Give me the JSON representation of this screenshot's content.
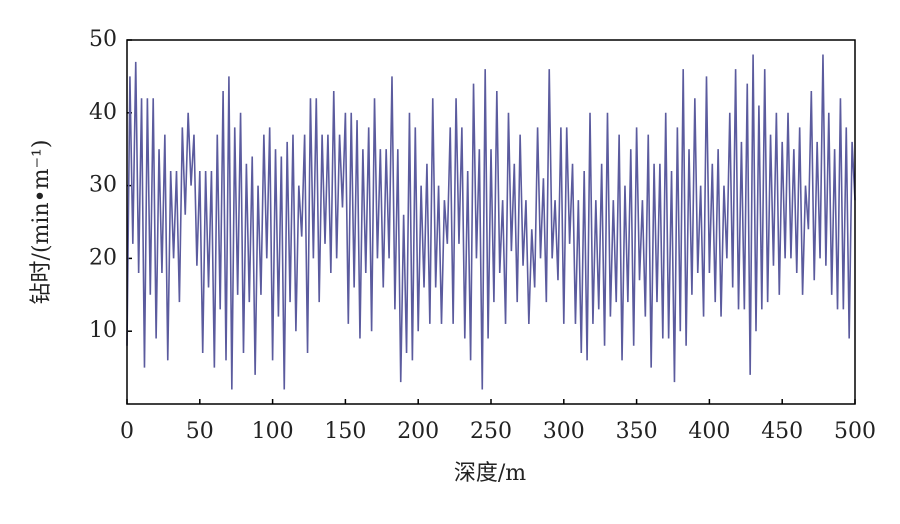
{
  "chart_data": {
    "type": "line",
    "xlabel": "深度/m",
    "ylabel": "钻时/(min•m⁻¹)",
    "xlim": [
      0,
      500
    ],
    "xticks": [
      0,
      50,
      100,
      150,
      200,
      250,
      300,
      350,
      400,
      450,
      500
    ],
    "ylim": [
      0,
      50
    ],
    "yticks": [
      10,
      20,
      30,
      40,
      50
    ],
    "series": [
      {
        "color": "#5b5b9e",
        "x": [
          0,
          2,
          4,
          6,
          8,
          10,
          12,
          14,
          16,
          18,
          20,
          22,
          24,
          26,
          28,
          30,
          32,
          34,
          36,
          38,
          40,
          42,
          44,
          46,
          48,
          50,
          52,
          54,
          56,
          58,
          60,
          62,
          64,
          66,
          68,
          70,
          72,
          74,
          76,
          78,
          80,
          82,
          84,
          86,
          88,
          90,
          92,
          94,
          96,
          98,
          100,
          102,
          104,
          106,
          108,
          110,
          112,
          114,
          116,
          118,
          120,
          122,
          124,
          126,
          128,
          130,
          132,
          134,
          136,
          138,
          140,
          142,
          144,
          146,
          148,
          150,
          152,
          154,
          156,
          158,
          160,
          162,
          164,
          166,
          168,
          170,
          172,
          174,
          176,
          178,
          180,
          182,
          184,
          186,
          188,
          190,
          192,
          194,
          196,
          198,
          200,
          202,
          204,
          206,
          208,
          210,
          212,
          214,
          216,
          218,
          220,
          222,
          224,
          226,
          228,
          230,
          232,
          234,
          236,
          238,
          240,
          242,
          244,
          246,
          248,
          250,
          252,
          254,
          256,
          258,
          260,
          262,
          264,
          266,
          268,
          270,
          272,
          274,
          276,
          278,
          280,
          282,
          284,
          286,
          288,
          290,
          292,
          294,
          296,
          298,
          300,
          302,
          304,
          306,
          308,
          310,
          312,
          314,
          316,
          318,
          320,
          322,
          324,
          326,
          328,
          330,
          332,
          334,
          336,
          338,
          340,
          342,
          344,
          346,
          348,
          350,
          352,
          354,
          356,
          358,
          360,
          362,
          364,
          366,
          368,
          370,
          372,
          374,
          376,
          378,
          380,
          382,
          384,
          386,
          388,
          390,
          392,
          394,
          396,
          398,
          400,
          402,
          404,
          406,
          408,
          410,
          412,
          414,
          416,
          418,
          420,
          422,
          424,
          426,
          428,
          430,
          432,
          434,
          436,
          438,
          440,
          442,
          444,
          446,
          448,
          450,
          452,
          454,
          456,
          458,
          460,
          462,
          464,
          466,
          468,
          470,
          472,
          474,
          476,
          478,
          480,
          482,
          484,
          486,
          488,
          490,
          492,
          494,
          496,
          498,
          500
        ],
        "values": [
          8,
          45,
          22,
          47,
          18,
          42,
          5,
          42,
          15,
          42,
          9,
          35,
          18,
          37,
          6,
          32,
          20,
          32,
          14,
          38,
          26,
          40,
          30,
          37,
          19,
          32,
          7,
          32,
          16,
          32,
          5,
          37,
          13,
          43,
          6,
          45,
          2,
          38,
          15,
          40,
          7,
          33,
          14,
          34,
          4,
          30,
          15,
          37,
          20,
          38,
          6,
          35,
          12,
          34,
          2,
          36,
          14,
          37,
          10,
          30,
          23,
          37,
          7,
          42,
          20,
          42,
          14,
          37,
          22,
          37,
          18,
          43,
          20,
          37,
          27,
          40,
          11,
          40,
          16,
          39,
          9,
          35,
          18,
          38,
          10,
          42,
          20,
          35,
          16,
          35,
          20,
          45,
          13,
          35,
          3,
          26,
          7,
          40,
          6,
          38,
          10,
          30,
          16,
          33,
          11,
          42,
          16,
          30,
          11,
          28,
          22,
          38,
          11,
          42,
          22,
          38,
          9,
          32,
          6,
          44,
          20,
          35,
          2,
          46,
          9,
          35,
          14,
          43,
          18,
          28,
          11,
          40,
          21,
          33,
          14,
          37,
          19,
          28,
          11,
          24,
          16,
          38,
          20,
          31,
          14,
          46,
          20,
          28,
          17,
          38,
          11,
          38,
          22,
          33,
          11,
          28,
          7,
          32,
          6,
          40,
          11,
          28,
          13,
          33,
          8,
          40,
          12,
          28,
          14,
          37,
          6,
          30,
          14,
          35,
          8,
          38,
          17,
          28,
          12,
          37,
          5,
          33,
          14,
          33,
          9,
          40,
          9,
          32,
          3,
          38,
          10,
          46,
          8,
          35,
          15,
          42,
          18,
          30,
          12,
          45,
          18,
          33,
          14,
          35,
          12,
          30,
          20,
          40,
          16,
          46,
          13,
          36,
          13,
          44,
          4,
          48,
          10,
          41,
          13,
          46,
          14,
          37,
          19,
          40,
          15,
          36,
          20,
          40,
          20,
          35,
          18,
          38,
          15,
          30,
          24,
          43,
          17,
          36,
          20,
          48,
          19,
          40,
          15,
          35,
          13,
          42,
          13,
          38,
          9,
          36,
          28
        ]
      }
    ]
  }
}
